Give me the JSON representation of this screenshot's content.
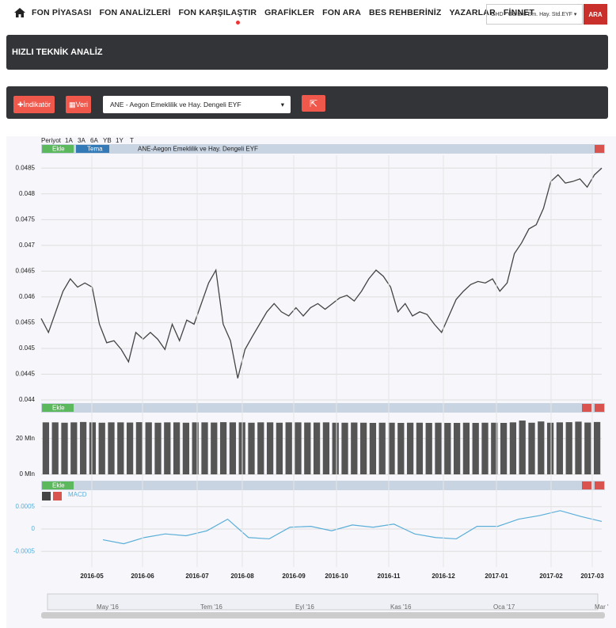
{
  "nav": {
    "items": [
      "FON PİYASASI",
      "FON ANALİZLERİ",
      "FON KARŞILAŞTIR",
      "GRAFİKLER",
      "FON ARA",
      "BES REHBERİNİZ",
      "YAZARLAR",
      "FİNNET"
    ],
    "search": "GHD - Garanti Em. Hay. Std.EYF",
    "search_button": "ARA"
  },
  "header": {
    "title": "HIZLI TEKNİK ANALİZ"
  },
  "toolbar": {
    "indicator": "İndikatör",
    "data": "Veri",
    "fund": "ANE - Aegon Emeklilik ve Hay. Dengeli EYF"
  },
  "chart": {
    "periods": [
      "Periyot",
      "1A",
      "3A",
      "6A",
      "YB",
      "1Y",
      "T"
    ],
    "add": "Ekle",
    "theme": "Tema",
    "title": "ANE-Aegon Emeklilik ve Hay. Dengeli EYF",
    "price": {
      "type": "line",
      "color": "#444444",
      "ylim": [
        0.044,
        0.04875
      ],
      "yticks": [
        0.044,
        0.0445,
        0.045,
        0.0455,
        0.046,
        0.0465,
        0.047,
        0.0475,
        0.048,
        0.0485
      ],
      "values": [
        0.04558,
        0.04531,
        0.04571,
        0.04611,
        0.04635,
        0.04619,
        0.04627,
        0.04619,
        0.04547,
        0.04511,
        0.04515,
        0.04498,
        0.04474,
        0.04531,
        0.04518,
        0.04531,
        0.04518,
        0.04498,
        0.04547,
        0.04515,
        0.04555,
        0.04547,
        0.04587,
        0.04627,
        0.04652,
        0.04547,
        0.04515,
        0.04442,
        0.04498,
        0.04523,
        0.04547,
        0.04571,
        0.04587,
        0.04571,
        0.04563,
        0.04579,
        0.04563,
        0.04579,
        0.04587,
        0.04576,
        0.04587,
        0.04598,
        0.04603,
        0.04592,
        0.04611,
        0.04635,
        0.04652,
        0.0464,
        0.04619,
        0.04571,
        0.04587,
        0.04563,
        0.04571,
        0.04566,
        0.04547,
        0.04531,
        0.04563,
        0.04595,
        0.04611,
        0.04624,
        0.0463,
        0.04627,
        0.04635,
        0.04611,
        0.04627,
        0.04684,
        0.04705,
        0.04732,
        0.0474,
        0.04772,
        0.04824,
        0.04837,
        0.04821,
        0.04824,
        0.04829,
        0.04813,
        0.04837,
        0.0485
      ]
    },
    "volume": {
      "type": "bar",
      "color": "#555555",
      "ylim": [
        0,
        34000000
      ],
      "yticks": [
        {
          "value": 0,
          "label": "0 Mln"
        },
        {
          "value": 20000000,
          "label": "20 Mln"
        }
      ],
      "values": [
        29000000,
        29000000,
        28800000,
        29000000,
        29200000,
        29000000,
        28800000,
        29000000,
        29000000,
        28900000,
        29100000,
        29000000,
        28800000,
        29000000,
        29000000,
        28800000,
        29000000,
        29000000,
        28900000,
        29100000,
        29000000,
        29000000,
        28800000,
        29000000,
        29000000,
        28800000,
        29000000,
        29000000,
        28900000,
        28900000,
        29000000,
        28800000,
        28800000,
        28900000,
        28800000,
        28700000,
        28800000,
        28800000,
        28700000,
        28800000,
        28800000,
        28700000,
        28800000,
        28700000,
        28700000,
        28800000,
        28700000,
        28800000,
        28800000,
        28700000,
        29000000,
        30000000,
        28800000,
        29500000,
        28800000,
        29000000,
        29100000,
        29400000,
        28900000,
        29200000
      ]
    },
    "macd": {
      "type": "line",
      "name": "MACD",
      "color": "#5aaed8",
      "ylim": [
        -0.00085,
        0.00085
      ],
      "yticks": [
        -0.0005,
        0,
        0.0005
      ],
      "values": [
        -0.00024,
        -0.00033,
        -0.00019,
        -0.00011,
        -0.00015,
        -4e-05,
        0.00022,
        -0.00019,
        -0.00022,
        4e-05,
        6e-05,
        -4e-05,
        9e-05,
        4e-05,
        0.00011,
        -0.00011,
        -0.00019,
        -0.00022,
        6e-05,
        6e-05,
        0.00022,
        0.0003,
        0.00041,
        0.00028,
        0.00017
      ]
    },
    "x_labels": [
      "2016-05",
      "2016-06",
      "2016-07",
      "2016-08",
      "2016-09",
      "2016-10",
      "2016-11",
      "2016-12",
      "2017-01",
      "2017-02",
      "2017-03"
    ],
    "navigator_labels": [
      "May '16",
      "Tem '16",
      "Eyl '16",
      "Kas '16",
      "Oca '17",
      "Mar '"
    ]
  }
}
